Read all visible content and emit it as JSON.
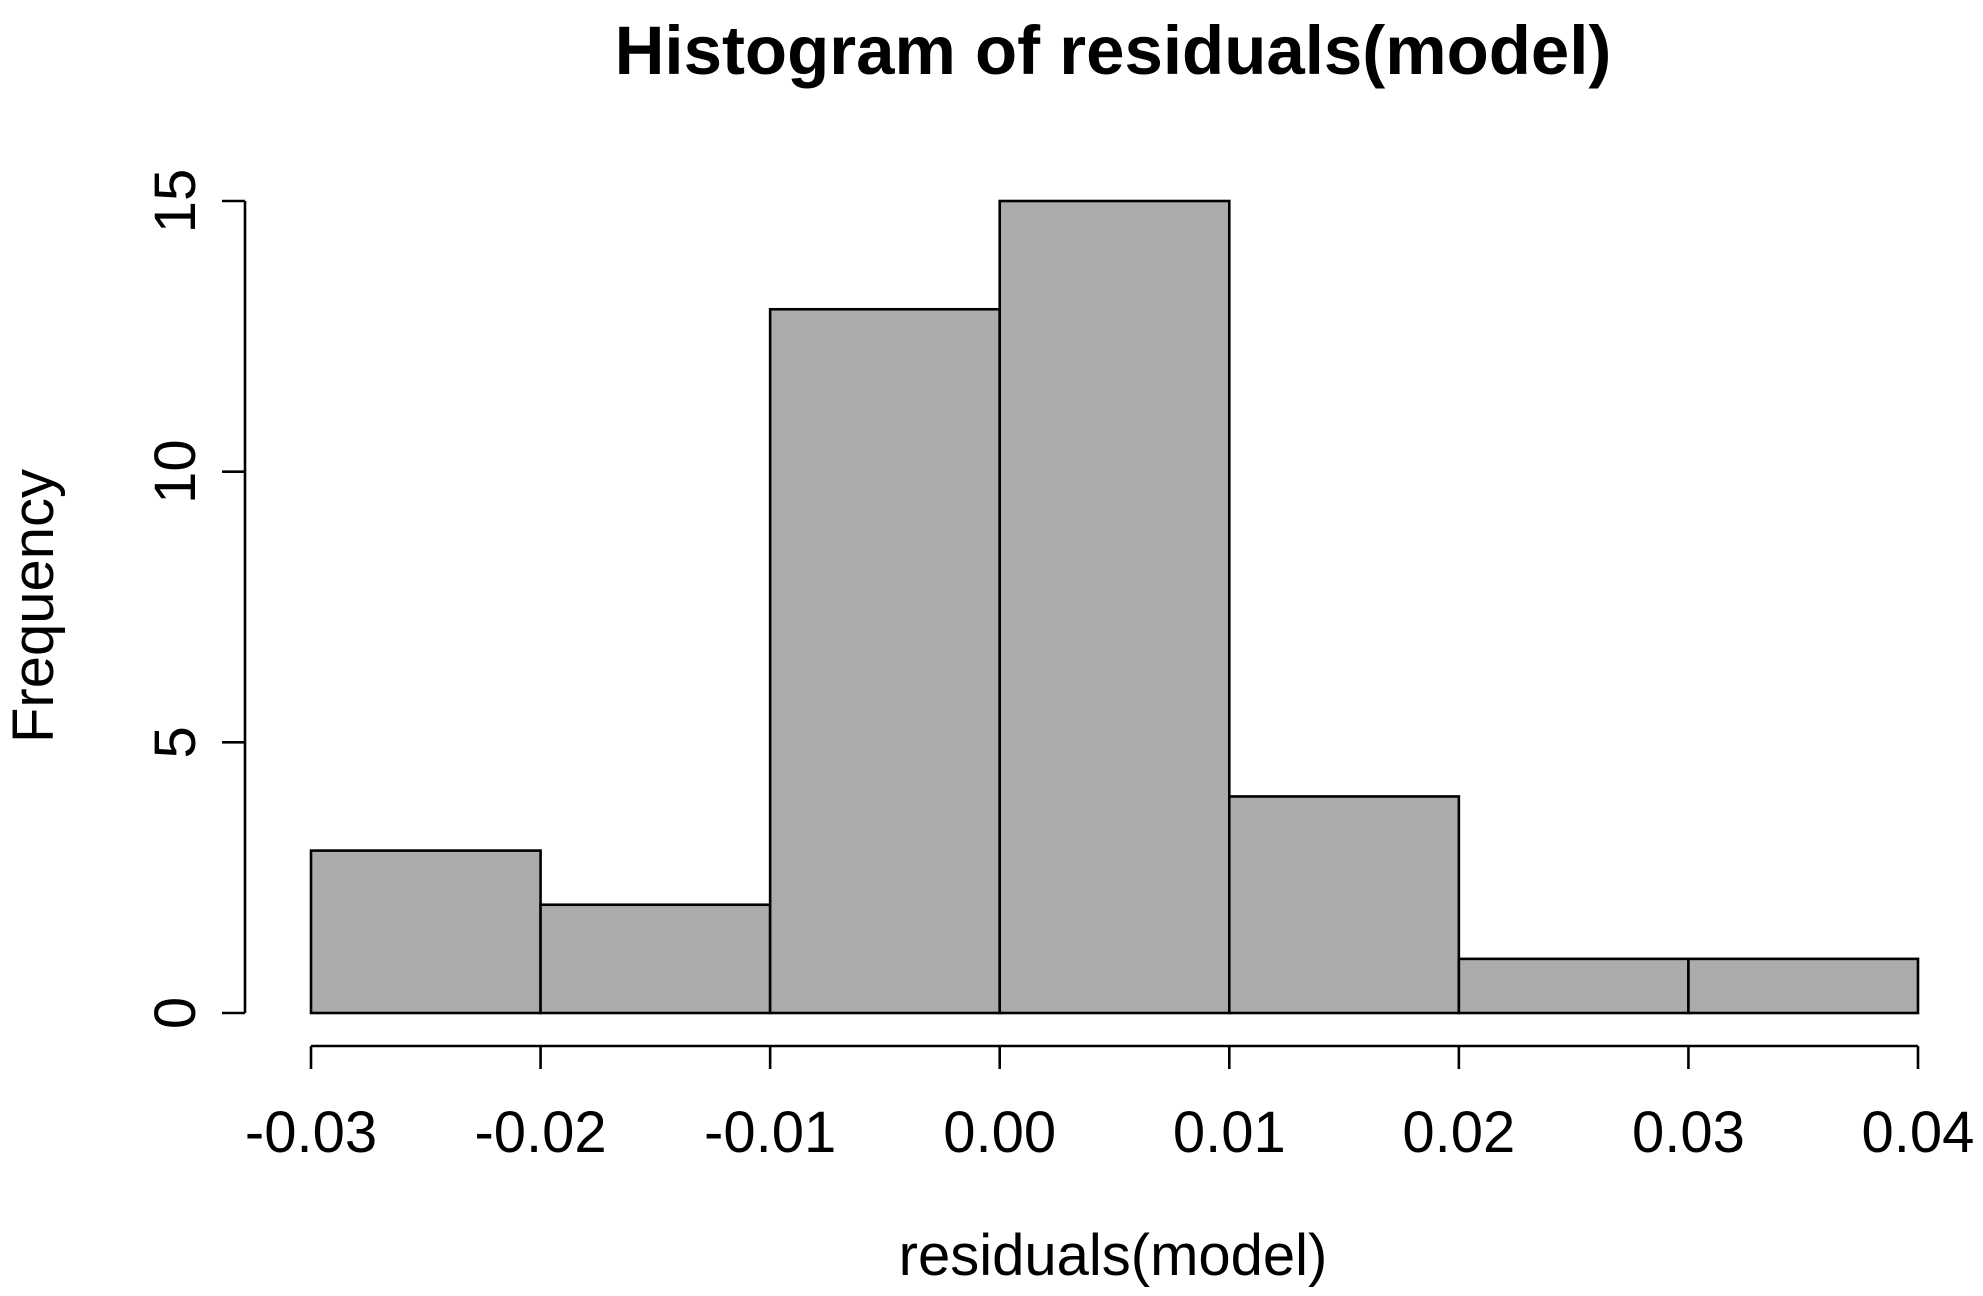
{
  "chart_data": {
    "type": "bar",
    "title": "Histogram of residuals(model)",
    "xlabel": "residuals(model)",
    "ylabel": "Frequency",
    "bins": [
      {
        "start": -0.03,
        "end": -0.02,
        "count": 3
      },
      {
        "start": -0.02,
        "end": -0.01,
        "count": 2
      },
      {
        "start": -0.01,
        "end": 0.0,
        "count": 13
      },
      {
        "start": 0.0,
        "end": 0.01,
        "count": 15
      },
      {
        "start": 0.01,
        "end": 0.02,
        "count": 4
      },
      {
        "start": 0.02,
        "end": 0.03,
        "count": 1
      },
      {
        "start": 0.03,
        "end": 0.04,
        "count": 1
      }
    ],
    "xlim": [
      -0.03,
      0.04
    ],
    "ylim": [
      0,
      15
    ],
    "x_ticks": [
      -0.03,
      -0.02,
      -0.01,
      0.0,
      0.01,
      0.02,
      0.03,
      0.04
    ],
    "x_tick_labels": [
      "-0.03",
      "-0.02",
      "-0.01",
      "0.00",
      "0.01",
      "0.02",
      "0.03",
      "0.04"
    ],
    "y_ticks": [
      0,
      5,
      10,
      15
    ],
    "y_tick_labels": [
      "0",
      "5",
      "10",
      "15"
    ],
    "grid": false,
    "bar_color": "#ababab",
    "edge_color": "#000000"
  }
}
